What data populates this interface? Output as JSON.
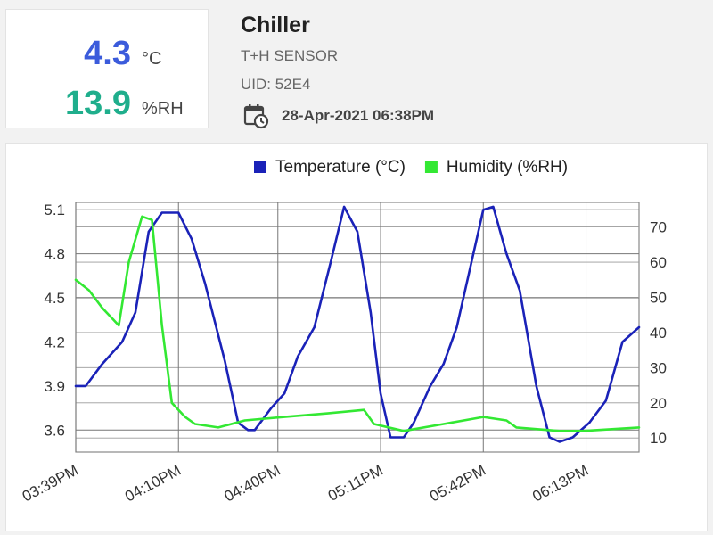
{
  "reading": {
    "temperature": "4.3",
    "temperature_unit": "°C",
    "humidity": "13.9",
    "humidity_unit": "%RH"
  },
  "device": {
    "name": "Chiller",
    "type": "T+H SENSOR",
    "uid": "UID:  52E4",
    "last_update": "28-Apr-2021 06:38PM",
    "calendar_icon": "calendar-clock-icon"
  },
  "colors": {
    "temperature": "#1a22b8",
    "humidity": "#33e833"
  },
  "chart_data": {
    "type": "line",
    "x_ticks": [
      "03:39PM",
      "04:10PM",
      "04:40PM",
      "05:11PM",
      "05:42PM",
      "06:13PM"
    ],
    "x_range": [
      "03:39PM",
      "06:29PM"
    ],
    "legend_position": "top-right",
    "grid": true,
    "y_left": {
      "ticks": [
        "3.6",
        "3.9",
        "4.2",
        "4.5",
        "4.8",
        "5.1"
      ],
      "range": [
        3.45,
        5.15
      ]
    },
    "y_right": {
      "ticks": [
        "10",
        "20",
        "30",
        "40",
        "50",
        "60",
        "70"
      ],
      "range": [
        6,
        77
      ]
    },
    "series": [
      {
        "name": "Temperature (°C)",
        "axis": "left",
        "color": "#1a22b8",
        "x": [
          "03:39PM",
          "03:42PM",
          "03:47PM",
          "03:53PM",
          "03:57PM",
          "04:01PM",
          "04:05PM",
          "04:10PM",
          "04:14PM",
          "04:18PM",
          "04:24PM",
          "04:28PM",
          "04:31PM",
          "04:33PM",
          "04:38PM",
          "04:42PM",
          "04:46PM",
          "04:51PM",
          "04:56PM",
          "05:00PM",
          "05:04PM",
          "05:08PM",
          "05:11PM",
          "05:14PM",
          "05:18PM",
          "05:21PM",
          "05:26PM",
          "05:30PM",
          "05:34PM",
          "05:38PM",
          "05:42PM",
          "05:45PM",
          "05:49PM",
          "05:53PM",
          "05:58PM",
          "06:02PM",
          "06:05PM",
          "06:09PM",
          "06:14PM",
          "06:19PM",
          "06:24PM",
          "06:29PM"
        ],
        "y": [
          3.9,
          3.9,
          4.05,
          4.2,
          4.4,
          4.95,
          5.08,
          5.08,
          4.9,
          4.6,
          4.07,
          3.65,
          3.6,
          3.6,
          3.75,
          3.85,
          4.1,
          4.3,
          4.75,
          5.12,
          4.95,
          4.4,
          3.85,
          3.55,
          3.55,
          3.65,
          3.9,
          4.05,
          4.3,
          4.7,
          5.1,
          5.12,
          4.8,
          4.55,
          3.9,
          3.55,
          3.52,
          3.55,
          3.65,
          3.8,
          4.2,
          4.3
        ]
      },
      {
        "name": "Humidity (%RH)",
        "axis": "right",
        "color": "#33e833",
        "x": [
          "03:39PM",
          "03:43PM",
          "03:47PM",
          "03:52PM",
          "03:55PM",
          "03:59PM",
          "04:02PM",
          "04:05PM",
          "04:08PM",
          "04:12PM",
          "04:15PM",
          "04:22PM",
          "04:30PM",
          "04:42PM",
          "04:55PM",
          "05:06PM",
          "05:09PM",
          "05:18PM",
          "05:30PM",
          "05:42PM",
          "05:49PM",
          "05:52PM",
          "06:05PM",
          "06:12PM",
          "06:29PM"
        ],
        "y": [
          55,
          52,
          47,
          42,
          60,
          73,
          72,
          42,
          20,
          16,
          14,
          13,
          15,
          16,
          17,
          18,
          14,
          12,
          14,
          16,
          15,
          13,
          12,
          12,
          13
        ]
      }
    ]
  }
}
